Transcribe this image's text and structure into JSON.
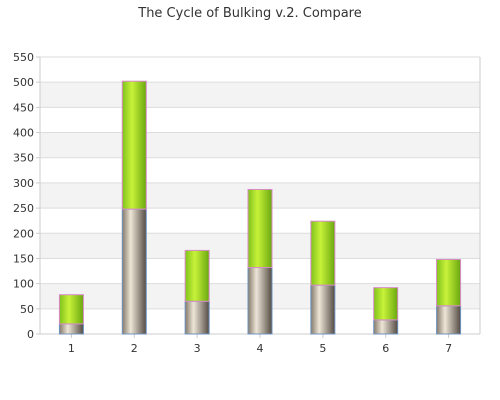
{
  "chart_data": {
    "type": "bar",
    "stacked": true,
    "title": "The Cycle of Bulking v.2. Compare",
    "xlabel": "",
    "ylabel": "",
    "categories": [
      "1",
      "2",
      "3",
      "4",
      "5",
      "6",
      "7"
    ],
    "ylim": [
      0,
      550
    ],
    "yticks": [
      "0",
      "50",
      "100",
      "150",
      "200",
      "250",
      "300",
      "350",
      "400",
      "450",
      "500",
      "550"
    ],
    "grid": true,
    "legend": "none",
    "series": [
      {
        "values": [
          20,
          248,
          65,
          132,
          97,
          28,
          56
        ],
        "color": "#a89a8a"
      },
      {
        "values": [
          58,
          254,
          101,
          155,
          127,
          64,
          92
        ],
        "color": "#99d81c"
      }
    ]
  },
  "colors": {
    "band": "#f3f3f3",
    "gridline": "#dddddd",
    "axis": "#cccccc",
    "bottom_border": "#6f93c0",
    "top_border": "#d88ac8"
  }
}
